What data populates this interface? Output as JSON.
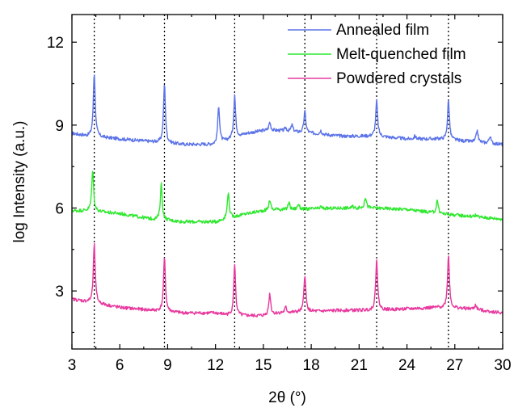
{
  "chart_data": {
    "type": "line",
    "title": "",
    "xlabel": "2θ (°)",
    "ylabel": "log Intensity (a.u.)",
    "xlim": [
      3,
      30
    ],
    "ylim": [
      0.9,
      13
    ],
    "xticks": [
      3,
      6,
      9,
      12,
      15,
      18,
      21,
      24,
      27,
      30
    ],
    "yticks": [
      3,
      6,
      9,
      12
    ],
    "grid": false,
    "legend_position": "top-right",
    "reference_lines_x": [
      4.4,
      8.8,
      13.2,
      17.6,
      22.1,
      26.6
    ],
    "series": [
      {
        "name": "Annealed film",
        "color": "#5b73e8",
        "baseline": [
          [
            3,
            8.7
          ],
          [
            4,
            8.6
          ],
          [
            6,
            8.5
          ],
          [
            8,
            8.4
          ],
          [
            10,
            8.3
          ],
          [
            12,
            8.3
          ],
          [
            14,
            8.7
          ],
          [
            15,
            8.8
          ],
          [
            16,
            8.8
          ],
          [
            18,
            8.7
          ],
          [
            20,
            8.6
          ],
          [
            22,
            8.6
          ],
          [
            24,
            8.5
          ],
          [
            26,
            8.5
          ],
          [
            28,
            8.4
          ],
          [
            30,
            8.3
          ]
        ],
        "peaks": [
          [
            4.4,
            10.9
          ],
          [
            8.8,
            10.5
          ],
          [
            12.2,
            9.7
          ],
          [
            13.2,
            10.1
          ],
          [
            15.4,
            9.1
          ],
          [
            16.4,
            8.9
          ],
          [
            16.8,
            9.0
          ],
          [
            17.6,
            9.5
          ],
          [
            18.6,
            8.8
          ],
          [
            22.1,
            9.9
          ],
          [
            24.5,
            8.6
          ],
          [
            26.6,
            9.9
          ],
          [
            28.4,
            8.8
          ],
          [
            29.2,
            8.6
          ]
        ]
      },
      {
        "name": "Melt-quenched film",
        "color": "#2ee82e",
        "baseline": [
          [
            3,
            5.9
          ],
          [
            4,
            5.9
          ],
          [
            6,
            5.8
          ],
          [
            8,
            5.6
          ],
          [
            10,
            5.5
          ],
          [
            12,
            5.5
          ],
          [
            14,
            5.8
          ],
          [
            15,
            5.9
          ],
          [
            17,
            5.95
          ],
          [
            20,
            6.0
          ],
          [
            22,
            6.0
          ],
          [
            24,
            5.95
          ],
          [
            26,
            5.8
          ],
          [
            28,
            5.7
          ],
          [
            30,
            5.6
          ]
        ],
        "peaks": [
          [
            4.3,
            7.4
          ],
          [
            8.6,
            6.9
          ],
          [
            12.8,
            6.6
          ],
          [
            15.4,
            6.3
          ],
          [
            15.9,
            6.0
          ],
          [
            16.6,
            6.2
          ],
          [
            17.2,
            6.15
          ],
          [
            18.6,
            6.05
          ],
          [
            20.6,
            6.05
          ],
          [
            21.4,
            6.4
          ],
          [
            25.9,
            6.3
          ],
          [
            28.3,
            5.75
          ]
        ]
      },
      {
        "name": "Powdered crystals",
        "color": "#e8389e",
        "baseline": [
          [
            3,
            2.7
          ],
          [
            4,
            2.6
          ],
          [
            6,
            2.4
          ],
          [
            8,
            2.3
          ],
          [
            10,
            2.2
          ],
          [
            12,
            2.2
          ],
          [
            13,
            2.1
          ],
          [
            15,
            2.1
          ],
          [
            16,
            2.2
          ],
          [
            18,
            2.25
          ],
          [
            20,
            2.3
          ],
          [
            22,
            2.3
          ],
          [
            24,
            2.35
          ],
          [
            26,
            2.4
          ],
          [
            28,
            2.35
          ],
          [
            30,
            2.2
          ]
        ],
        "peaks": [
          [
            4.4,
            4.7
          ],
          [
            8.8,
            4.2
          ],
          [
            13.2,
            4.0
          ],
          [
            15.4,
            2.9
          ],
          [
            16.4,
            2.4
          ],
          [
            17.6,
            3.6
          ],
          [
            22.1,
            4.2
          ],
          [
            26.6,
            4.3
          ],
          [
            28.3,
            2.5
          ]
        ]
      }
    ]
  }
}
